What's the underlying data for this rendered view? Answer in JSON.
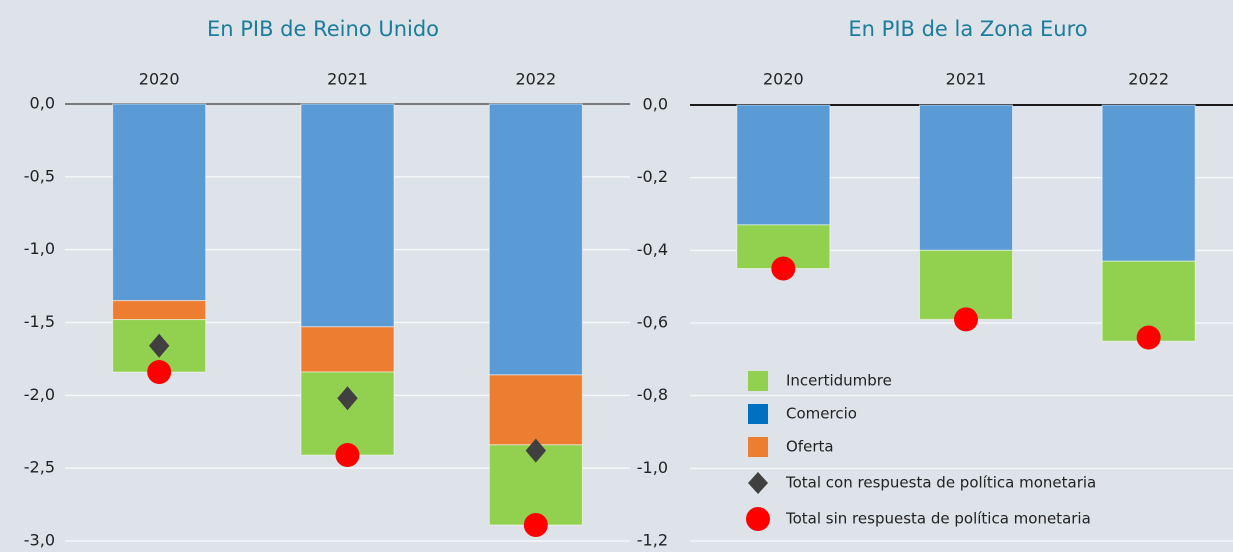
{
  "chart_data": [
    {
      "type": "bar",
      "stacked": true,
      "title": "En PIB de Reino Unido",
      "categories": [
        "2020",
        "2021",
        "2022"
      ],
      "ylim": [
        -3,
        0
      ],
      "yticks": [
        {
          "value": 0,
          "label": "0,0"
        },
        {
          "value": -0.5,
          "label": "-0,5"
        },
        {
          "value": -1,
          "label": "-1,0"
        },
        {
          "value": -1.5,
          "label": "-1,5"
        },
        {
          "value": -2,
          "label": "-2,0"
        },
        {
          "value": -2.5,
          "label": "-2,5"
        },
        {
          "value": -3,
          "label": "-3,0"
        }
      ],
      "grid": true,
      "zero_line_color": "#7a7a7a",
      "stack_order": [
        1,
        2,
        0
      ],
      "series": [
        {
          "color": "#92d050",
          "values": [
            -0.36,
            -0.57,
            -0.55
          ]
        },
        {
          "color": "#5b9bd5",
          "values": [
            -1.35,
            -1.53,
            -1.86
          ]
        },
        {
          "color": "#ed7d31",
          "values": [
            -0.13,
            -0.31,
            -0.48
          ]
        }
      ],
      "markers": [
        {
          "shape": "diamond",
          "color": "#404040",
          "values": [
            -1.66,
            -2.02,
            -2.38
          ]
        },
        {
          "shape": "circle",
          "color": "#ff0000",
          "values": [
            -1.84,
            -2.41,
            -2.89
          ]
        }
      ]
    },
    {
      "type": "bar",
      "stacked": true,
      "title": "En PIB de la Zona Euro",
      "categories": [
        "2020",
        "2021",
        "2022"
      ],
      "ylim": [
        -1.2,
        0
      ],
      "yticks": [
        {
          "value": 0,
          "label": "0,0"
        },
        {
          "value": -0.2,
          "label": "-0,2"
        },
        {
          "value": -0.4,
          "label": "-0,4"
        },
        {
          "value": -0.6,
          "label": "-0,6"
        },
        {
          "value": -0.8,
          "label": "-0,8"
        },
        {
          "value": -1,
          "label": "-1,0"
        },
        {
          "value": -1.2,
          "label": "-1,2"
        }
      ],
      "grid": true,
      "zero_line_color": "#1a1a1a",
      "legend": "bottom-left",
      "stack_order": [
        1,
        2,
        0
      ],
      "series": [
        {
          "name": "Incertidumbre",
          "color": "#92d050",
          "values": [
            -0.12,
            -0.19,
            -0.22
          ]
        },
        {
          "name": "Comercio",
          "color": "#0070c0",
          "bar_color": "#5b9bd5",
          "values": [
            -0.33,
            -0.4,
            -0.43
          ]
        },
        {
          "name": "Oferta",
          "color": "#ed7d31",
          "values": [
            0,
            0,
            0
          ]
        }
      ],
      "markers": [
        {
          "name": "Total con respuesta de política monetaria",
          "shape": "diamond",
          "color": "#404040",
          "values": [
            null,
            null,
            null
          ]
        },
        {
          "name": "Total sin respuesta de política monetaria",
          "shape": "circle",
          "color": "#ff0000",
          "values": [
            -0.45,
            -0.59,
            -0.64
          ]
        }
      ]
    }
  ]
}
